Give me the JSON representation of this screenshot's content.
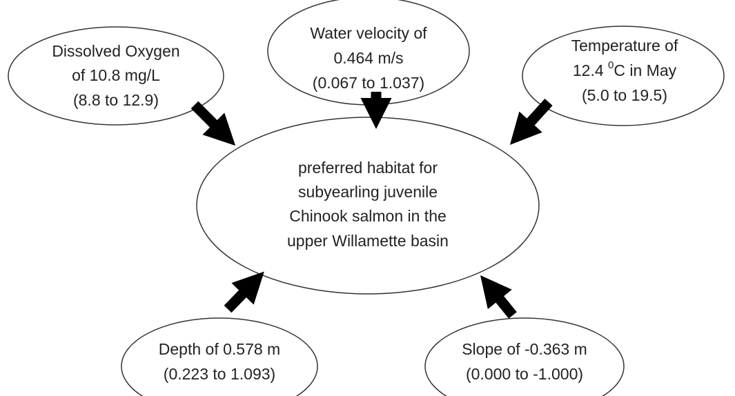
{
  "nodes": [
    {
      "lines": [
        "Dissolved Oxygen",
        "of 10.8 mg/L",
        "(8.8 to 12.9)"
      ]
    },
    {
      "lines": [
        "Water velocity of",
        "0.464 m/s",
        "(0.067 to 1.037)"
      ]
    },
    {
      "lines": [
        "Temperature of",
        [
          "12.4 ",
          "0",
          "C in May"
        ],
        "(5.0 to 19.5)"
      ]
    },
    {
      "lines": [
        "preferred habitat for",
        "subyearling juvenile",
        "Chinook salmon in the",
        "upper Willamette basin"
      ]
    },
    {
      "lines": [
        "Depth of 0.578 m",
        "(0.223 to 1.093)"
      ]
    },
    {
      "lines": [
        "Slope of -0.363 m",
        "(0.000 to -1.000)"
      ]
    }
  ]
}
